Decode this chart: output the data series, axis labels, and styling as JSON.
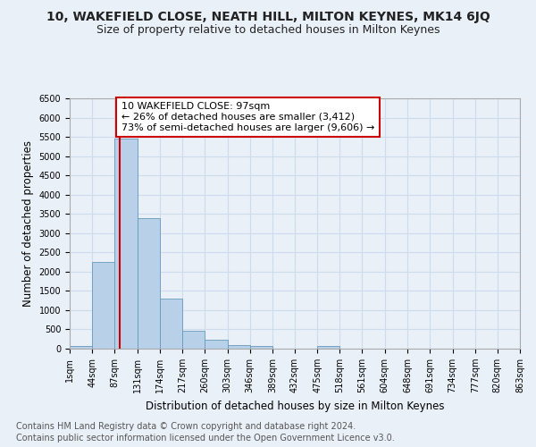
{
  "title1": "10, WAKEFIELD CLOSE, NEATH HILL, MILTON KEYNES, MK14 6JQ",
  "title2": "Size of property relative to detached houses in Milton Keynes",
  "xlabel": "Distribution of detached houses by size in Milton Keynes",
  "ylabel": "Number of detached properties",
  "footnote1": "Contains HM Land Registry data © Crown copyright and database right 2024.",
  "footnote2": "Contains public sector information licensed under the Open Government Licence v3.0.",
  "bar_color": "#b8d0e8",
  "bar_edge_color": "#6699bb",
  "grid_color": "#ccdcec",
  "background_color": "#eaf0f8",
  "bin_edges": [
    1,
    44,
    87,
    131,
    174,
    217,
    260,
    303,
    346,
    389,
    432,
    475,
    518,
    561,
    604,
    648,
    691,
    734,
    777,
    820,
    863
  ],
  "bar_heights": [
    75,
    2250,
    5450,
    3400,
    1300,
    475,
    225,
    100,
    75,
    0,
    0,
    75,
    0,
    0,
    0,
    0,
    0,
    0,
    0,
    0
  ],
  "red_line_x": 97,
  "red_line_color": "#cc0000",
  "annotation_text": "10 WAKEFIELD CLOSE: 97sqm\n← 26% of detached houses are smaller (3,412)\n73% of semi-detached houses are larger (9,606) →",
  "annotation_box_color": "#ffffff",
  "annotation_box_edge": "#cc0000",
  "ylim": [
    0,
    6500
  ],
  "yticks": [
    0,
    500,
    1000,
    1500,
    2000,
    2500,
    3000,
    3500,
    4000,
    4500,
    5000,
    5500,
    6000,
    6500
  ],
  "tick_labels": [
    "1sqm",
    "44sqm",
    "87sqm",
    "131sqm",
    "174sqm",
    "217sqm",
    "260sqm",
    "303sqm",
    "346sqm",
    "389sqm",
    "432sqm",
    "475sqm",
    "518sqm",
    "561sqm",
    "604sqm",
    "648sqm",
    "691sqm",
    "734sqm",
    "777sqm",
    "820sqm",
    "863sqm"
  ],
  "title1_fontsize": 10,
  "title2_fontsize": 9,
  "xlabel_fontsize": 8.5,
  "ylabel_fontsize": 8.5,
  "tick_fontsize": 7,
  "footnote_fontsize": 7,
  "annotation_fontsize": 8
}
